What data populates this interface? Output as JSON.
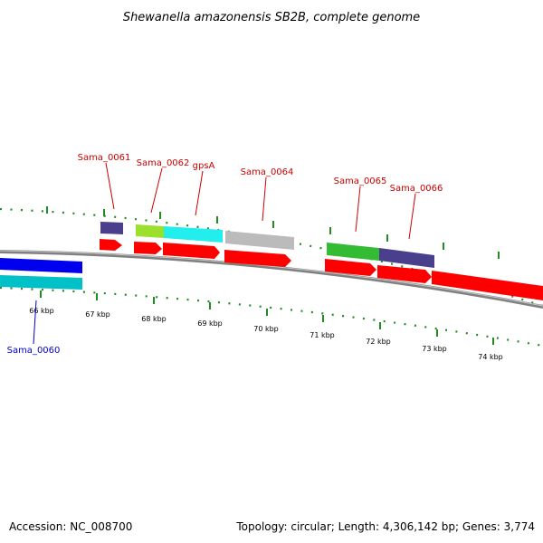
{
  "title": "Shewanella amazonensis SB2B, complete genome",
  "footer": {
    "accession": "Accession: NC_008700",
    "summary": "Topology: circular; Length: 4,306,142 bp; Genes: 3,774"
  },
  "colors": {
    "cds": "#ff0000",
    "label_top": "#cc0000",
    "label_bottom": "#0000cc",
    "tick": "#228b22",
    "backbone": "#808080"
  },
  "scale": {
    "ticks": [
      "66 kbp",
      "67 kbp",
      "68 kbp",
      "69 kbp",
      "70 kbp",
      "71 kbp",
      "72 kbp",
      "73 kbp",
      "74 kbp"
    ]
  },
  "gene_labels": {
    "sama_0060": "Sama_0060",
    "sama_0061": "Sama_0061",
    "sama_0062": "Sama_0062",
    "gpsA": "gpsA",
    "sama_0064": "Sama_0064",
    "sama_0065": "Sama_0065",
    "sama_0066": "Sama_0066"
  }
}
